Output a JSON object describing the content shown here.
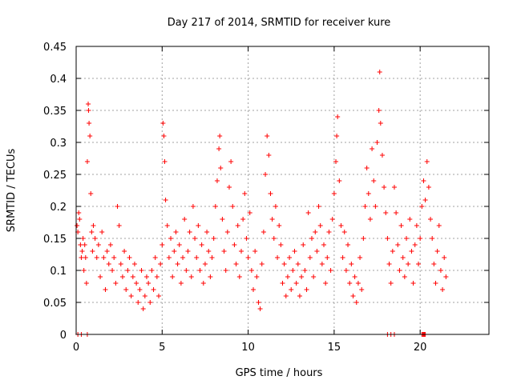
{
  "chart_data": {
    "type": "scatter",
    "title": "Day 217 of 2014, SRMTID for receiver kure",
    "xlabel": "GPS time / hours",
    "ylabel": "SRMTID / TECUs",
    "xlim": [
      0,
      24
    ],
    "ylim": [
      0,
      0.45
    ],
    "x_ticks": [
      0,
      5,
      10,
      15,
      20
    ],
    "x_tick_labels": [
      "0",
      "5",
      "10",
      "15",
      "20"
    ],
    "y_ticks": [
      0,
      0.05,
      0.1,
      0.15,
      0.2,
      0.25,
      0.3,
      0.35,
      0.4,
      0.45
    ],
    "y_tick_labels": [
      "0",
      "0.05",
      "0.1",
      "0.15",
      "0.2",
      "0.25",
      "0.3",
      "0.35",
      "0.4",
      "0.45"
    ],
    "grid": true,
    "marker": "+",
    "color": "#ff0000",
    "series": [
      {
        "name": "SRMTID",
        "points": [
          [
            0.05,
            0.17
          ],
          [
            0.1,
            0.16
          ],
          [
            0.15,
            0.19
          ],
          [
            0.2,
            0.18
          ],
          [
            0.25,
            0.14
          ],
          [
            0.3,
            0.12
          ],
          [
            0.35,
            0.13
          ],
          [
            0.4,
            0.15
          ],
          [
            0.45,
            0.1
          ],
          [
            0.5,
            0.14
          ],
          [
            0.55,
            0.12
          ],
          [
            0.6,
            0.08
          ],
          [
            0.65,
            0.27
          ],
          [
            0.7,
            0.36
          ],
          [
            0.72,
            0.35
          ],
          [
            0.75,
            0.33
          ],
          [
            0.8,
            0.31
          ],
          [
            0.85,
            0.22
          ],
          [
            0.9,
            0.16
          ],
          [
            0.95,
            0.13
          ],
          [
            1.0,
            0.17
          ],
          [
            1.1,
            0.15
          ],
          [
            1.2,
            0.12
          ],
          [
            1.3,
            0.14
          ],
          [
            1.4,
            0.09
          ],
          [
            1.5,
            0.16
          ],
          [
            1.6,
            0.12
          ],
          [
            1.7,
            0.07
          ],
          [
            1.8,
            0.13
          ],
          [
            1.9,
            0.11
          ],
          [
            2.0,
            0.14
          ],
          [
            2.1,
            0.1
          ],
          [
            2.2,
            0.12
          ],
          [
            2.3,
            0.08
          ],
          [
            2.4,
            0.2
          ],
          [
            2.5,
            0.17
          ],
          [
            2.6,
            0.11
          ],
          [
            2.7,
            0.09
          ],
          [
            2.8,
            0.13
          ],
          [
            2.9,
            0.07
          ],
          [
            3.0,
            0.1
          ],
          [
            3.1,
            0.12
          ],
          [
            3.2,
            0.06
          ],
          [
            3.3,
            0.09
          ],
          [
            3.4,
            0.11
          ],
          [
            3.5,
            0.08
          ],
          [
            3.6,
            0.05
          ],
          [
            3.7,
            0.07
          ],
          [
            3.8,
            0.1
          ],
          [
            3.9,
            0.04
          ],
          [
            4.0,
            0.06
          ],
          [
            4.1,
            0.09
          ],
          [
            4.2,
            0.08
          ],
          [
            4.3,
            0.05
          ],
          [
            4.4,
            0.1
          ],
          [
            4.5,
            0.07
          ],
          [
            4.6,
            0.12
          ],
          [
            4.7,
            0.09
          ],
          [
            4.8,
            0.06
          ],
          [
            4.9,
            0.11
          ],
          [
            5.0,
            0.14
          ],
          [
            5.05,
            0.33
          ],
          [
            5.1,
            0.31
          ],
          [
            5.15,
            0.27
          ],
          [
            5.2,
            0.21
          ],
          [
            5.3,
            0.17
          ],
          [
            5.4,
            0.12
          ],
          [
            5.5,
            0.15
          ],
          [
            5.6,
            0.09
          ],
          [
            5.7,
            0.13
          ],
          [
            5.8,
            0.16
          ],
          [
            5.9,
            0.11
          ],
          [
            6.0,
            0.14
          ],
          [
            6.1,
            0.08
          ],
          [
            6.2,
            0.12
          ],
          [
            6.3,
            0.18
          ],
          [
            6.4,
            0.1
          ],
          [
            6.5,
            0.13
          ],
          [
            6.6,
            0.16
          ],
          [
            6.7,
            0.09
          ],
          [
            6.8,
            0.2
          ],
          [
            6.9,
            0.15
          ],
          [
            7.0,
            0.12
          ],
          [
            7.1,
            0.17
          ],
          [
            7.2,
            0.1
          ],
          [
            7.3,
            0.14
          ],
          [
            7.4,
            0.08
          ],
          [
            7.5,
            0.11
          ],
          [
            7.6,
            0.16
          ],
          [
            7.7,
            0.13
          ],
          [
            7.8,
            0.09
          ],
          [
            7.9,
            0.12
          ],
          [
            8.0,
            0.15
          ],
          [
            8.1,
            0.2
          ],
          [
            8.2,
            0.24
          ],
          [
            8.3,
            0.29
          ],
          [
            8.35,
            0.31
          ],
          [
            8.4,
            0.26
          ],
          [
            8.5,
            0.18
          ],
          [
            8.6,
            0.13
          ],
          [
            8.7,
            0.1
          ],
          [
            8.8,
            0.16
          ],
          [
            8.9,
            0.23
          ],
          [
            9.0,
            0.27
          ],
          [
            9.1,
            0.2
          ],
          [
            9.2,
            0.14
          ],
          [
            9.3,
            0.11
          ],
          [
            9.4,
            0.17
          ],
          [
            9.5,
            0.09
          ],
          [
            9.6,
            0.13
          ],
          [
            9.7,
            0.18
          ],
          [
            9.8,
            0.22
          ],
          [
            9.9,
            0.15
          ],
          [
            10.0,
            0.12
          ],
          [
            10.1,
            0.19
          ],
          [
            10.2,
            0.1
          ],
          [
            10.3,
            0.07
          ],
          [
            10.4,
            0.13
          ],
          [
            10.5,
            0.09
          ],
          [
            10.6,
            0.05
          ],
          [
            10.7,
            0.04
          ],
          [
            10.8,
            0.11
          ],
          [
            10.9,
            0.16
          ],
          [
            11.0,
            0.25
          ],
          [
            11.1,
            0.31
          ],
          [
            11.2,
            0.28
          ],
          [
            11.3,
            0.22
          ],
          [
            11.4,
            0.18
          ],
          [
            11.5,
            0.15
          ],
          [
            11.6,
            0.2
          ],
          [
            11.7,
            0.12
          ],
          [
            11.8,
            0.17
          ],
          [
            11.9,
            0.14
          ],
          [
            12.0,
            0.08
          ],
          [
            12.1,
            0.11
          ],
          [
            12.2,
            0.06
          ],
          [
            12.3,
            0.09
          ],
          [
            12.4,
            0.12
          ],
          [
            12.5,
            0.07
          ],
          [
            12.6,
            0.1
          ],
          [
            12.7,
            0.13
          ],
          [
            12.8,
            0.08
          ],
          [
            12.9,
            0.11
          ],
          [
            13.0,
            0.06
          ],
          [
            13.1,
            0.09
          ],
          [
            13.2,
            0.14
          ],
          [
            13.3,
            0.1
          ],
          [
            13.4,
            0.07
          ],
          [
            13.5,
            0.19
          ],
          [
            13.6,
            0.12
          ],
          [
            13.7,
            0.15
          ],
          [
            13.8,
            0.09
          ],
          [
            13.9,
            0.16
          ],
          [
            14.0,
            0.13
          ],
          [
            14.1,
            0.2
          ],
          [
            14.2,
            0.17
          ],
          [
            14.3,
            0.11
          ],
          [
            14.4,
            0.14
          ],
          [
            14.5,
            0.08
          ],
          [
            14.6,
            0.12
          ],
          [
            14.7,
            0.16
          ],
          [
            14.8,
            0.1
          ],
          [
            14.9,
            0.18
          ],
          [
            15.0,
            0.22
          ],
          [
            15.1,
            0.27
          ],
          [
            15.15,
            0.31
          ],
          [
            15.2,
            0.34
          ],
          [
            15.3,
            0.24
          ],
          [
            15.4,
            0.17
          ],
          [
            15.5,
            0.12
          ],
          [
            15.6,
            0.16
          ],
          [
            15.7,
            0.1
          ],
          [
            15.8,
            0.14
          ],
          [
            15.9,
            0.08
          ],
          [
            16.0,
            0.11
          ],
          [
            16.1,
            0.06
          ],
          [
            16.2,
            0.09
          ],
          [
            16.3,
            0.05
          ],
          [
            16.4,
            0.08
          ],
          [
            16.5,
            0.12
          ],
          [
            16.6,
            0.07
          ],
          [
            16.7,
            0.15
          ],
          [
            16.8,
            0.2
          ],
          [
            16.9,
            0.26
          ],
          [
            17.0,
            0.22
          ],
          [
            17.1,
            0.18
          ],
          [
            17.2,
            0.29
          ],
          [
            17.3,
            0.24
          ],
          [
            17.4,
            0.2
          ],
          [
            17.5,
            0.3
          ],
          [
            17.6,
            0.35
          ],
          [
            17.65,
            0.41
          ],
          [
            17.7,
            0.33
          ],
          [
            17.8,
            0.28
          ],
          [
            17.9,
            0.23
          ],
          [
            18.0,
            0.19
          ],
          [
            18.1,
            0.15
          ],
          [
            18.2,
            0.11
          ],
          [
            18.3,
            0.08
          ],
          [
            18.4,
            0.13
          ],
          [
            18.5,
            0.23
          ],
          [
            18.6,
            0.19
          ],
          [
            18.7,
            0.14
          ],
          [
            18.8,
            0.1
          ],
          [
            18.9,
            0.17
          ],
          [
            19.0,
            0.12
          ],
          [
            19.1,
            0.09
          ],
          [
            19.2,
            0.15
          ],
          [
            19.3,
            0.11
          ],
          [
            19.4,
            0.18
          ],
          [
            19.5,
            0.13
          ],
          [
            19.6,
            0.08
          ],
          [
            19.7,
            0.14
          ],
          [
            19.8,
            0.17
          ],
          [
            19.9,
            0.11
          ],
          [
            20.0,
            0.15
          ],
          [
            20.1,
            0.2
          ],
          [
            20.2,
            0.24
          ],
          [
            20.3,
            0.21
          ],
          [
            20.4,
            0.27
          ],
          [
            20.5,
            0.23
          ],
          [
            20.6,
            0.18
          ],
          [
            20.7,
            0.15
          ],
          [
            20.8,
            0.11
          ],
          [
            20.9,
            0.08
          ],
          [
            21.0,
            0.13
          ],
          [
            21.1,
            0.17
          ],
          [
            21.2,
            0.1
          ],
          [
            21.3,
            0.07
          ],
          [
            21.4,
            0.12
          ],
          [
            21.5,
            0.09
          ],
          [
            0.1,
            0.0
          ],
          [
            0.3,
            0.0
          ],
          [
            0.65,
            0.0
          ],
          [
            18.1,
            0.0
          ],
          [
            18.3,
            0.0
          ],
          [
            18.5,
            0.0
          ],
          [
            20.1,
            0.0
          ],
          [
            20.15,
            0.0
          ],
          [
            20.2,
            0.0
          ],
          [
            20.25,
            0.0
          ],
          [
            20.3,
            0.0
          ]
        ]
      }
    ]
  }
}
